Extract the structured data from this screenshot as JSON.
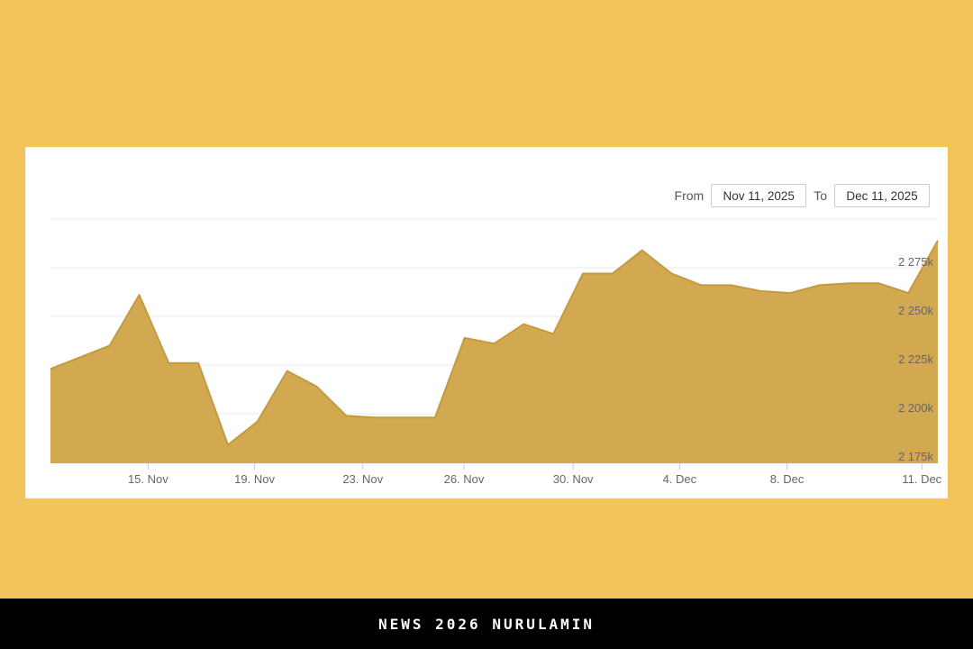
{
  "page": {
    "background_color": "#f4c45c",
    "card_color": "#ffffff"
  },
  "controls": {
    "from_label": "From",
    "from_value": "Nov 11, 2025",
    "to_label": "To",
    "to_value": "Dec 11, 2025"
  },
  "footer": {
    "text": "NEWS 2026 NURULAMIN"
  },
  "chart_data": {
    "type": "area",
    "title": "",
    "xlabel": "",
    "ylabel": "",
    "x": [
      "Nov 11",
      "Nov 12",
      "Nov 13",
      "Nov 14",
      "Nov 15",
      "Nov 16",
      "Nov 17",
      "Nov 18",
      "Nov 19",
      "Nov 20",
      "Nov 21",
      "Nov 22",
      "Nov 23",
      "Nov 24",
      "Nov 25",
      "Nov 26",
      "Nov 27",
      "Nov 28",
      "Nov 29",
      "Nov 30",
      "Dec 1",
      "Dec 2",
      "Dec 3",
      "Dec 4",
      "Dec 5",
      "Dec 6",
      "Dec 7",
      "Dec 8",
      "Dec 9",
      "Dec 10",
      "Dec 11"
    ],
    "values": [
      2223,
      2229,
      2235,
      2261,
      2226,
      2226,
      2184,
      2196,
      2222,
      2214,
      2199,
      2198,
      2198,
      2198,
      2239,
      2236,
      2246,
      2241,
      2272,
      2272,
      2284,
      2272,
      2266,
      2266,
      2263,
      2262,
      2266,
      2267,
      2267,
      2262,
      2289
    ],
    "unit": "k",
    "ylim": [
      2175,
      2300
    ],
    "y_tick_interval": 25,
    "gridline_values": [
      2300,
      2275,
      2250,
      2225,
      2200,
      2175
    ],
    "y_ticks": [
      {
        "label": "2 275k",
        "value": 2275
      },
      {
        "label": "2 250k",
        "value": 2250
      },
      {
        "label": "2 225k",
        "value": 2225
      },
      {
        "label": "2 200k",
        "value": 2200
      },
      {
        "label": "2 175k",
        "value": 2175
      }
    ],
    "x_ticks": [
      {
        "label": "15. Nov",
        "pos": 0.11
      },
      {
        "label": "19. Nov",
        "pos": 0.23
      },
      {
        "label": "23. Nov",
        "pos": 0.352
      },
      {
        "label": "26. Nov",
        "pos": 0.466
      },
      {
        "label": "30. Nov",
        "pos": 0.589
      },
      {
        "label": "4. Dec",
        "pos": 0.709
      },
      {
        "label": "8. Dec",
        "pos": 0.83
      },
      {
        "label": "11. Dec",
        "pos": 0.982
      }
    ],
    "legend": "off",
    "grid": "horizontal",
    "y_labels_side": "right",
    "colors": {
      "fill": "#d2a851",
      "stroke": "#c49a3e",
      "grid": "#e8e8e8",
      "axis_label": "#666666",
      "tick_mark": "#cccccc"
    }
  }
}
